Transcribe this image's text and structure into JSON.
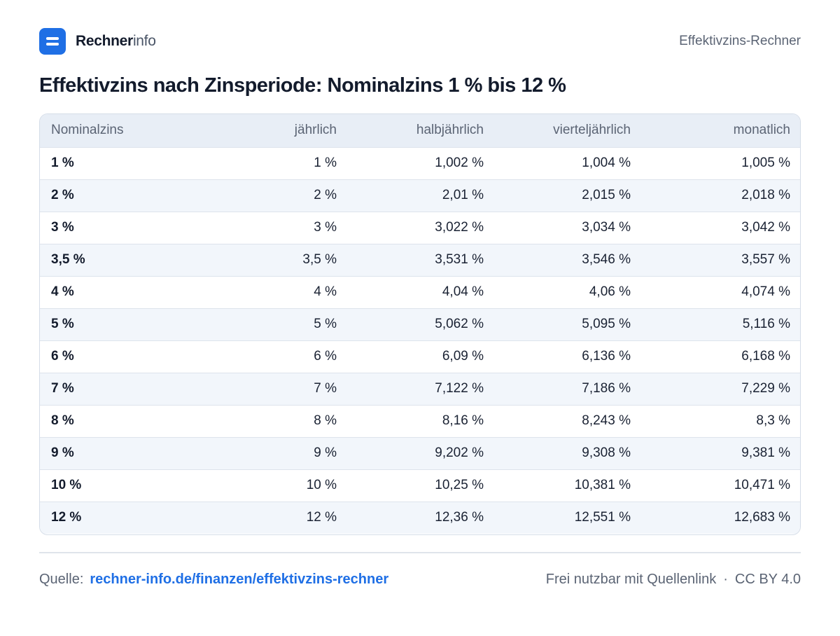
{
  "header": {
    "brand_strong": "Rechner",
    "brand_light": "info",
    "right_label": "Effektivzins-Rechner",
    "logo_icon": "menu-icon",
    "accent_color": "#1f6fe5"
  },
  "title": "Effektivzins nach Zinsperiode: Nominalzins 1 % bis 12 %",
  "table": {
    "columns": [
      "Nominalzins",
      "jährlich",
      "halbjährlich",
      "vierteljährlich",
      "monatlich"
    ],
    "rows": [
      [
        "1 %",
        "1 %",
        "1,002 %",
        "1,004 %",
        "1,005 %"
      ],
      [
        "2 %",
        "2 %",
        "2,01 %",
        "2,015 %",
        "2,018 %"
      ],
      [
        "3 %",
        "3 %",
        "3,022 %",
        "3,034 %",
        "3,042 %"
      ],
      [
        "3,5 %",
        "3,5 %",
        "3,531 %",
        "3,546 %",
        "3,557 %"
      ],
      [
        "4 %",
        "4 %",
        "4,04 %",
        "4,06 %",
        "4,074 %"
      ],
      [
        "5 %",
        "5 %",
        "5,062 %",
        "5,095 %",
        "5,116 %"
      ],
      [
        "6 %",
        "6 %",
        "6,09 %",
        "6,136 %",
        "6,168 %"
      ],
      [
        "7 %",
        "7 %",
        "7,122 %",
        "7,186 %",
        "7,229 %"
      ],
      [
        "8 %",
        "8 %",
        "8,16 %",
        "8,243 %",
        "8,3 %"
      ],
      [
        "9 %",
        "9 %",
        "9,202 %",
        "9,308 %",
        "9,381 %"
      ],
      [
        "10 %",
        "10 %",
        "10,25 %",
        "10,381 %",
        "10,471 %"
      ],
      [
        "12 %",
        "12 %",
        "12,36 %",
        "12,551 %",
        "12,683 %"
      ]
    ]
  },
  "footer": {
    "source_label": "Quelle:",
    "source_link": "rechner-info.de/finanzen/effektivzins-rechner",
    "license_text": "Frei nutzbar mit Quellenlink",
    "separator": "·",
    "license": "CC BY 4.0"
  }
}
